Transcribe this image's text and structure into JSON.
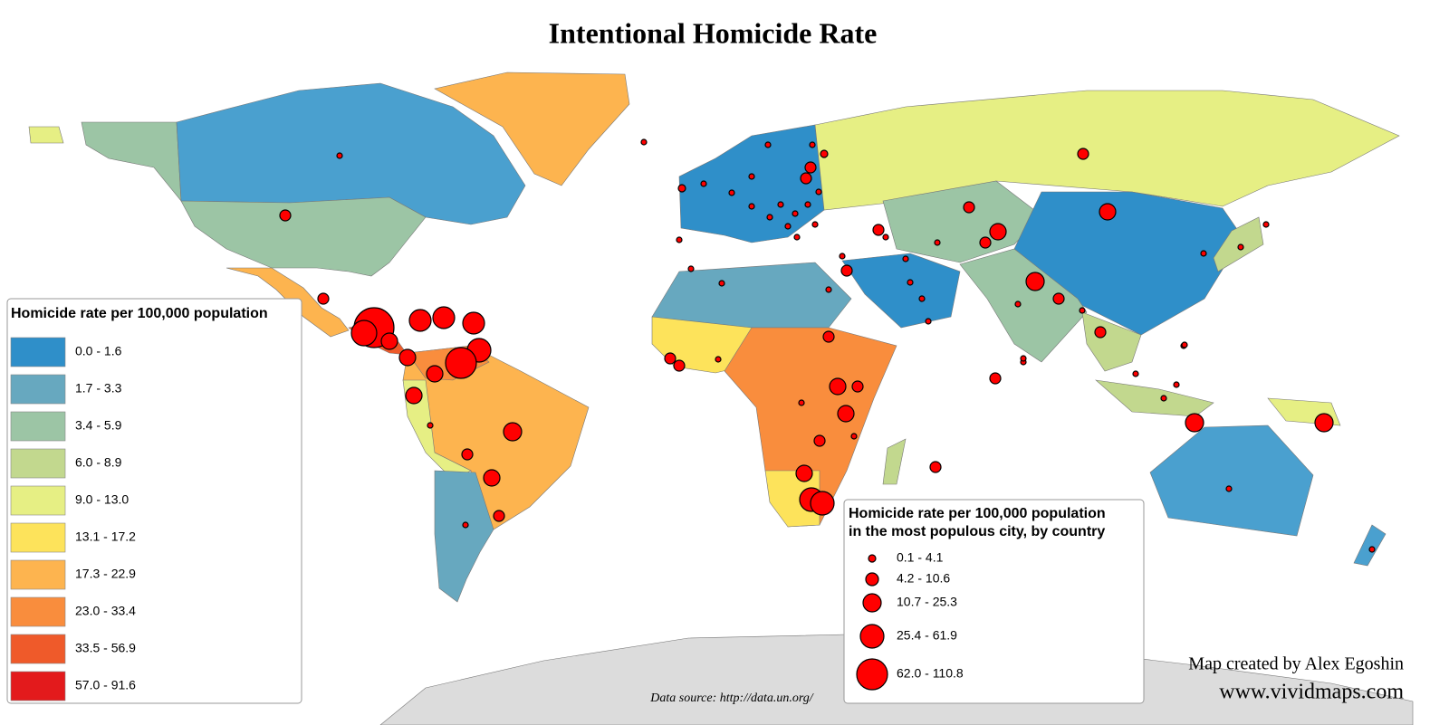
{
  "title": "Intentional Homicide Rate",
  "country_legend": {
    "title": "Homicide rate per 100,000 population",
    "classes": [
      {
        "label": "0.0 - 1.6",
        "color": "#2f8fc9"
      },
      {
        "label": "1.7 - 3.3",
        "color": "#67a8bf"
      },
      {
        "label": "3.4 - 5.9",
        "color": "#9cc5a5"
      },
      {
        "label": "6.0 - 8.9",
        "color": "#c2d88e"
      },
      {
        "label": "9.0 - 13.0",
        "color": "#e6ef84"
      },
      {
        "label": "13.1 - 17.2",
        "color": "#fde35b"
      },
      {
        "label": "17.3 - 22.9",
        "color": "#fdb44f"
      },
      {
        "label": "23.0 - 33.4",
        "color": "#f98d3d"
      },
      {
        "label": "33.5 - 56.9",
        "color": "#ef5a2a"
      },
      {
        "label": "57.0 - 91.6",
        "color": "#e31a1c"
      }
    ]
  },
  "city_legend": {
    "title": [
      "Homicide rate per 100,000 population",
      "in the most populous city, by country"
    ],
    "classes": [
      "0.1 - 4.1",
      "4.2 - 10.6",
      "10.7 - 25.3",
      "25.4 - 61.9",
      "62.0 - 110.8"
    ],
    "color": "#ff0000"
  },
  "source": "Data source: http://data.un.org/",
  "credit": "Map created by Alex Egoshin",
  "website": "www.vividmaps.com"
}
